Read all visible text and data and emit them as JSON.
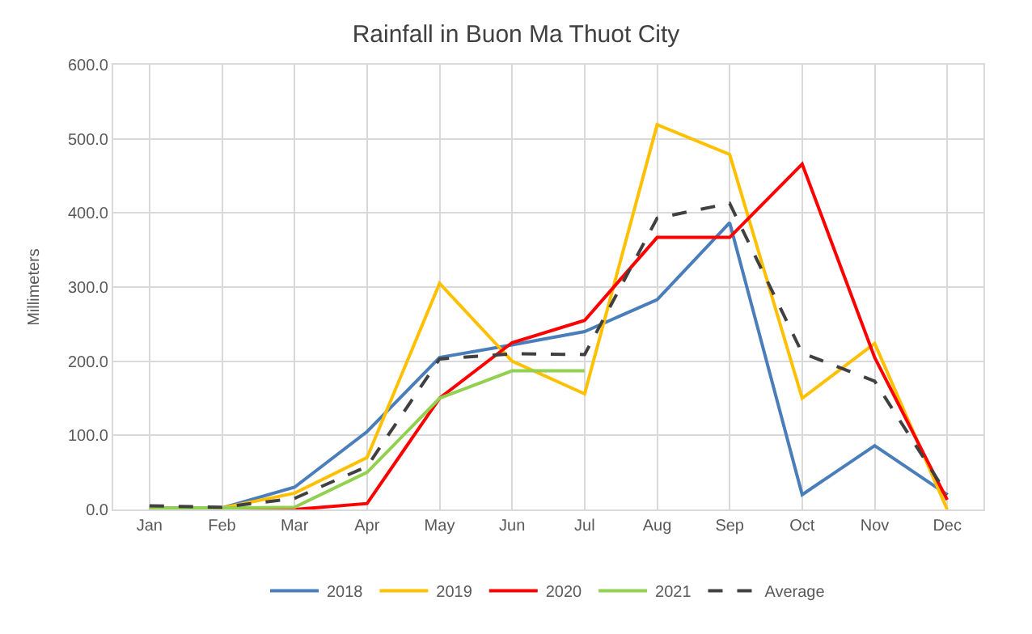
{
  "chart_data": {
    "type": "line",
    "title": "Rainfall in Buon Ma Thuot City",
    "ylabel": "Millimeters",
    "categories": [
      "Jan",
      "Feb",
      "Mar",
      "Apr",
      "May",
      "Jun",
      "Jul",
      "Aug",
      "Sep",
      "Oct",
      "Nov",
      "Dec"
    ],
    "series": [
      {
        "name": "2018",
        "color": "#4a7ebb",
        "values": [
          2,
          2,
          30,
          105,
          205,
          222,
          240,
          283,
          387,
          20,
          86,
          20
        ]
      },
      {
        "name": "2019",
        "color": "#ffc000",
        "values": [
          0,
          2,
          22,
          70,
          305,
          200,
          156,
          519,
          479,
          150,
          224,
          0
        ]
      },
      {
        "name": "2020",
        "color": "#ff0000",
        "values": [
          0,
          0,
          0,
          8,
          150,
          225,
          255,
          367,
          367,
          466,
          205,
          13
        ]
      },
      {
        "name": "2021",
        "color": "#92d050",
        "values": [
          2,
          2,
          3,
          50,
          150,
          187,
          187,
          null,
          null,
          null,
          null,
          null
        ]
      },
      {
        "name": "Average",
        "color": "#404040",
        "line_style": "dashed",
        "values": [
          5,
          3,
          15,
          58,
          203,
          210,
          209,
          393,
          413,
          211,
          173,
          20
        ]
      }
    ],
    "ylim": [
      0,
      600
    ],
    "yticks": [
      {
        "value": 0,
        "label": "0.0"
      },
      {
        "value": 100,
        "label": "100.0"
      },
      {
        "value": 200,
        "label": "200.0"
      },
      {
        "value": 300,
        "label": "300.0"
      },
      {
        "value": 400,
        "label": "400.0"
      },
      {
        "value": 500,
        "label": "500.0"
      },
      {
        "value": 600,
        "label": "600.0"
      }
    ],
    "grid": true,
    "legend": "bottom",
    "marker": "none",
    "line_style": "solid"
  }
}
